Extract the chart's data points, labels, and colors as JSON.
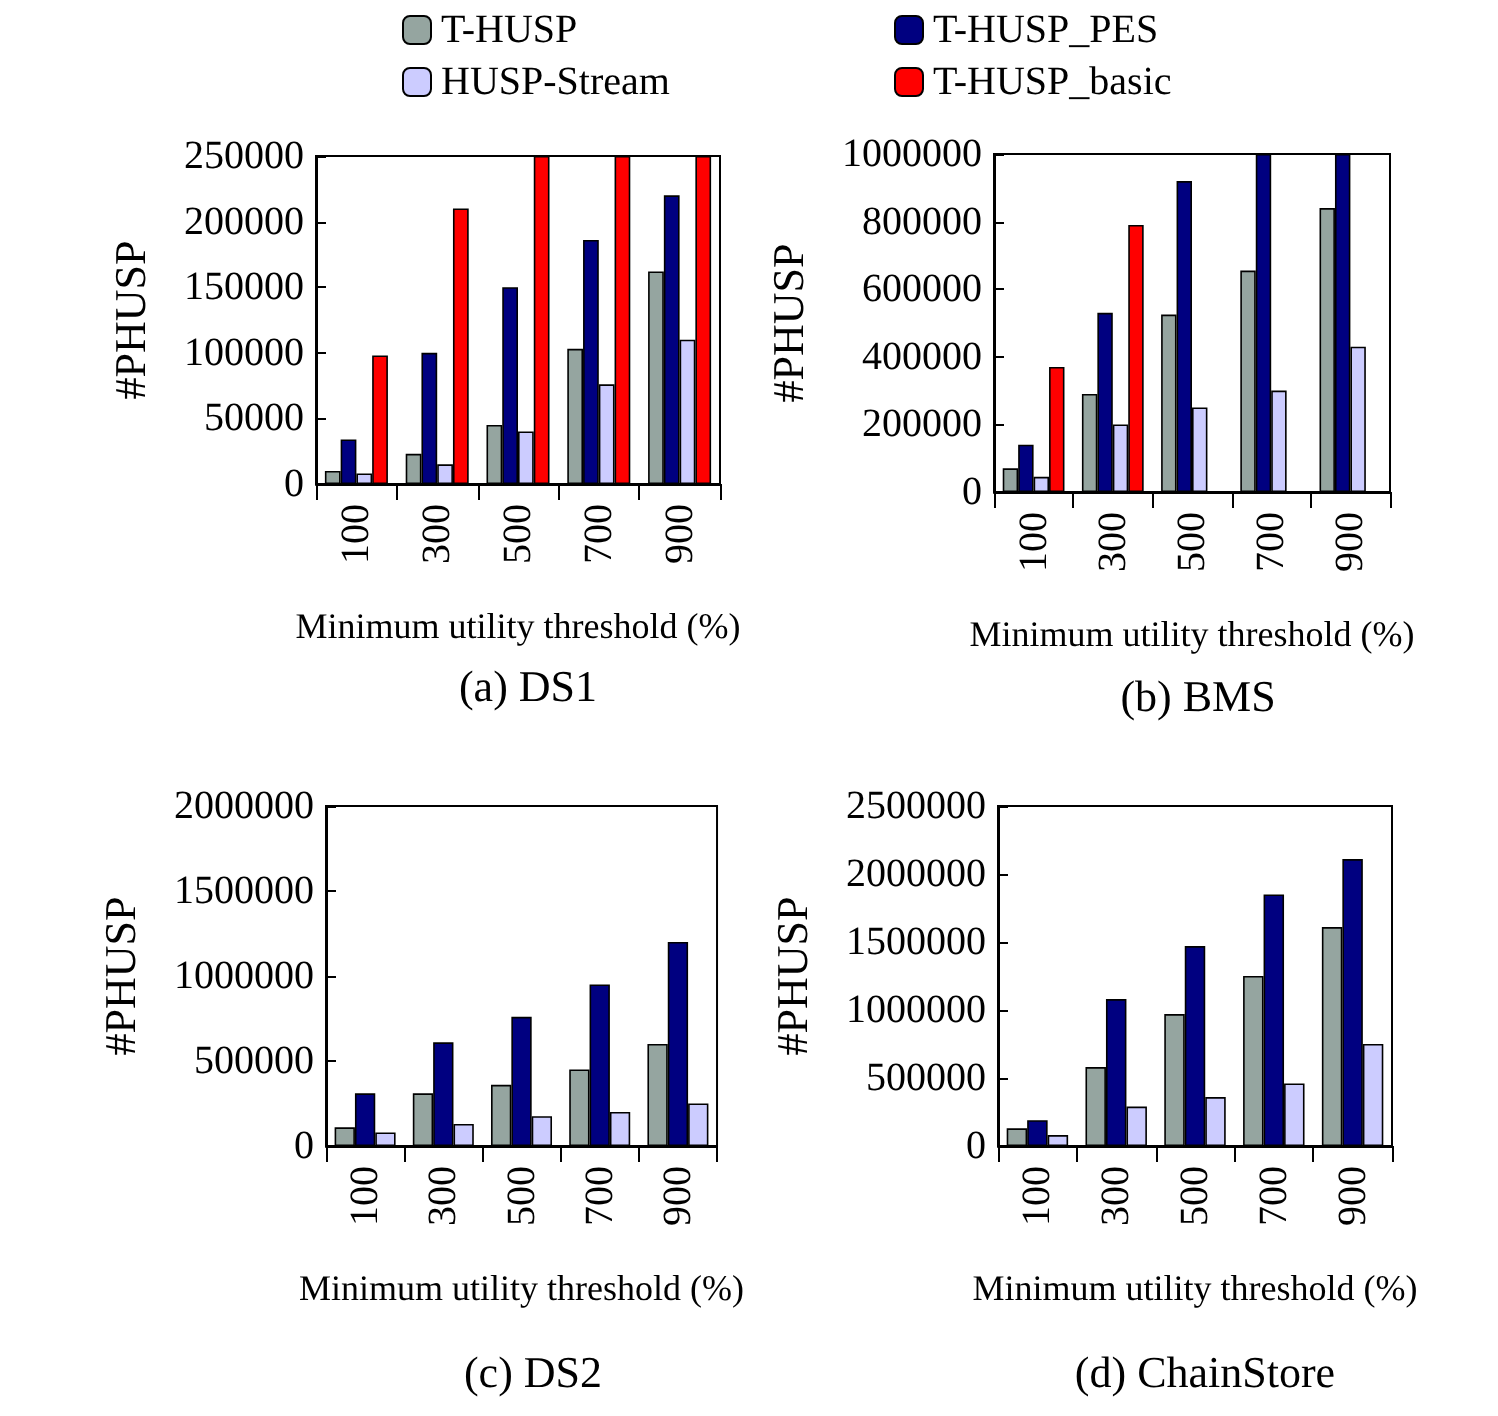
{
  "chart_data": [
    {
      "type": "bar",
      "title": "(a) DS1",
      "xlabel": "Minimum utility threshold (%)",
      "ylabel": "#PHUSP",
      "categories": [
        "100",
        "300",
        "500",
        "700",
        "900"
      ],
      "ylim": [
        0,
        250000
      ],
      "yticks": [
        0,
        50000,
        100000,
        150000,
        200000,
        250000
      ],
      "legend": "top",
      "series": [
        {
          "name": "T-HUSP",
          "color": "#95a5a0",
          "values": [
            10000,
            23000,
            45000,
            103000,
            162000
          ]
        },
        {
          "name": "T-HUSP_PES",
          "color": "#000080",
          "values": [
            34000,
            100000,
            150000,
            186000,
            220000
          ]
        },
        {
          "name": "HUSP-Stream",
          "color": "#ccccff",
          "values": [
            8000,
            15000,
            40000,
            76000,
            110000
          ]
        },
        {
          "name": "T-HUSP_basic",
          "color": "#ff0000",
          "values": [
            98000,
            210000,
            250000,
            250000,
            250000
          ]
        }
      ]
    },
    {
      "type": "bar",
      "title": "(b) BMS",
      "xlabel": "Minimum utility threshold (%)",
      "ylabel": "#PHUSP",
      "categories": [
        "100",
        "300",
        "500",
        "700",
        "900"
      ],
      "ylim": [
        0,
        1000000
      ],
      "yticks": [
        0,
        200000,
        400000,
        600000,
        800000,
        1000000
      ],
      "series": [
        {
          "color": "#95a5a0",
          "values": [
            70000,
            290000,
            525000,
            655000,
            840000
          ]
        },
        {
          "color": "#000080",
          "values": [
            140000,
            530000,
            920000,
            1000000,
            1000000
          ]
        },
        {
          "color": "#ccccff",
          "values": [
            45000,
            200000,
            250000,
            300000,
            430000
          ]
        },
        {
          "color": "#ff0000",
          "values": [
            370000,
            790000,
            null,
            null,
            null
          ]
        }
      ]
    },
    {
      "type": "bar",
      "title": "(c) DS2",
      "xlabel": "Minimum utility threshold (%)",
      "ylabel": "#PHUSP",
      "categories": [
        "100",
        "300",
        "500",
        "700",
        "900"
      ],
      "ylim": [
        0,
        2000000
      ],
      "yticks": [
        0,
        500000,
        1000000,
        1500000,
        2000000
      ],
      "series": [
        {
          "color": "#95a5a0",
          "values": [
            110000,
            310000,
            360000,
            450000,
            600000
          ]
        },
        {
          "color": "#000080",
          "values": [
            310000,
            610000,
            760000,
            950000,
            1200000
          ]
        },
        {
          "color": "#ccccff",
          "values": [
            80000,
            130000,
            175000,
            200000,
            250000
          ]
        }
      ]
    },
    {
      "type": "bar",
      "title": "(d) ChainStore",
      "xlabel": "Minimum utility threshold (%)",
      "ylabel": "#PHUSP",
      "categories": [
        "100",
        "300",
        "500",
        "700",
        "900"
      ],
      "ylim": [
        0,
        2500000
      ],
      "yticks": [
        0,
        500000,
        1000000,
        1500000,
        2000000,
        2500000
      ],
      "series": [
        {
          "color": "#95a5a0",
          "values": [
            130000,
            580000,
            970000,
            1250000,
            1610000
          ]
        },
        {
          "color": "#000080",
          "values": [
            190000,
            1080000,
            1470000,
            1850000,
            2110000
          ]
        },
        {
          "color": "#ccccff",
          "values": [
            80000,
            290000,
            360000,
            460000,
            750000
          ]
        }
      ]
    }
  ]
}
